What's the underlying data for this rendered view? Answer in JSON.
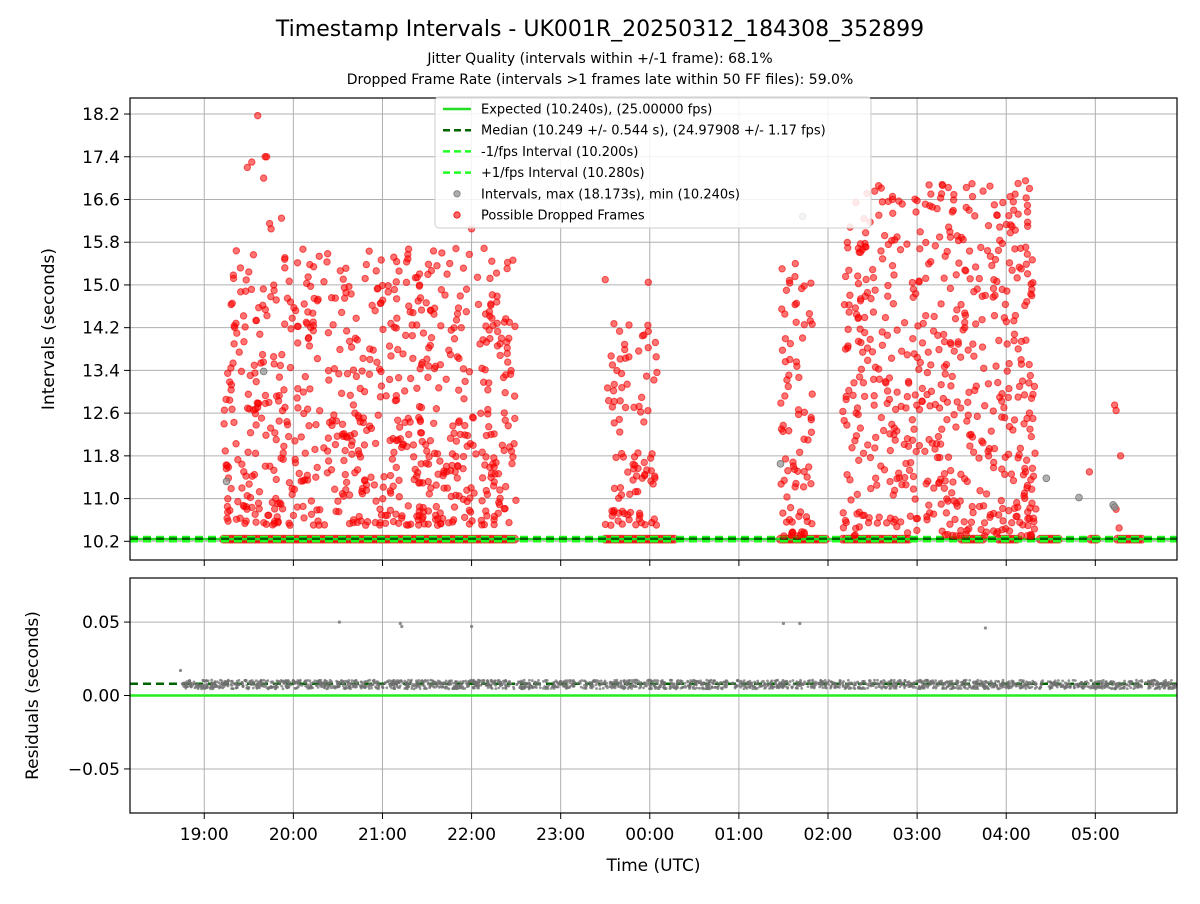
{
  "chart_data": [
    {
      "type": "scatter",
      "title": "Timestamp Intervals - UK001R_20250312_184308_352899",
      "subtitle_lines": [
        "Jitter Quality (intervals within +/-1 frame): 68.1%",
        "Dropped Frame Rate (intervals >1 frames late within 50 FF files): 59.0%"
      ],
      "xlabel": "",
      "ylabel": "Intervals (seconds)",
      "xlim": [
        "18:10",
        "05:55"
      ],
      "ylim": [
        9.85,
        18.5
      ],
      "grid": true,
      "yticks": [
        10.2,
        11.0,
        11.8,
        12.6,
        13.4,
        14.2,
        15.0,
        15.8,
        16.6,
        17.4,
        18.2
      ],
      "ytick_labels": [
        "10.2",
        "11.0",
        "11.8",
        "12.6",
        "13.4",
        "14.2",
        "15.0",
        "15.8",
        "16.6",
        "17.4",
        "18.2"
      ],
      "legend_position": "top-center",
      "legend": [
        {
          "label": "Expected (10.240s), (25.00000 fps)",
          "style": "solid-line",
          "color": "#22dd22"
        },
        {
          "label": "Median (10.249 +/- 0.544 s), (24.97908 +/- 1.17 fps)",
          "style": "dashed-line",
          "color": "#006400"
        },
        {
          "label": "-1/fps Interval (10.200s)",
          "style": "dashed-line",
          "color": "#22ff22"
        },
        {
          "label": "+1/fps Interval (10.280s)",
          "style": "dashed-line",
          "color": "#22ff22"
        },
        {
          "label": "Intervals, max (18.173s), min (10.240s)",
          "style": "gray-marker",
          "color": "#808080"
        },
        {
          "label": "Possible Dropped Frames",
          "style": "red-marker",
          "color": "#ff0000"
        }
      ],
      "reference_lines": {
        "expected": 10.24,
        "median": 10.249,
        "minus_one_fps": 10.2,
        "plus_one_fps": 10.28
      },
      "series": [
        {
          "name": "Possible Dropped Frames",
          "color": "#ff0000",
          "clusters": [
            {
              "start": "19:13",
              "end": "22:30",
              "y_min": 10.5,
              "y_max": 15.7,
              "count": 720
            },
            {
              "start": "23:30",
              "end": "00:05",
              "y_min": 10.5,
              "y_max": 14.3,
              "count": 95
            },
            {
              "start": "01:28",
              "end": "01:50",
              "y_min": 10.3,
              "y_max": 15.4,
              "count": 80
            },
            {
              "start": "02:10",
              "end": "04:20",
              "y_min": 10.3,
              "y_max": 16.9,
              "count": 560
            }
          ],
          "points": [
            {
              "x": "19:36",
              "y": 18.17
            },
            {
              "x": "19:29",
              "y": 17.2
            },
            {
              "x": "19:32",
              "y": 17.3
            },
            {
              "x": "19:41",
              "y": 17.4
            },
            {
              "x": "19:42",
              "y": 17.4
            },
            {
              "x": "19:40",
              "y": 17.0
            },
            {
              "x": "19:52",
              "y": 16.25
            },
            {
              "x": "19:44",
              "y": 16.15
            },
            {
              "x": "19:45",
              "y": 16.05
            },
            {
              "x": "22:00",
              "y": 16.05
            },
            {
              "x": "21:40",
              "y": 15.6
            },
            {
              "x": "21:20",
              "y": 14.25
            },
            {
              "x": "22:12",
              "y": 14.5
            },
            {
              "x": "23:30",
              "y": 15.1
            },
            {
              "x": "23:59",
              "y": 15.05
            },
            {
              "x": "23:46",
              "y": 14.25
            },
            {
              "x": "01:38",
              "y": 15.4
            },
            {
              "x": "01:32",
              "y": 14.9
            },
            {
              "x": "04:13",
              "y": 16.95
            },
            {
              "x": "04:08",
              "y": 16.9
            },
            {
              "x": "04:06",
              "y": 16.7
            },
            {
              "x": "03:52",
              "y": 16.5
            },
            {
              "x": "04:05",
              "y": 16.4
            },
            {
              "x": "03:35",
              "y": 16.4
            },
            {
              "x": "05:13",
              "y": 12.75
            },
            {
              "x": "05:14",
              "y": 12.65
            },
            {
              "x": "05:17",
              "y": 11.8
            },
            {
              "x": "04:56",
              "y": 11.5
            },
            {
              "x": "05:14",
              "y": 10.8
            },
            {
              "x": "05:16",
              "y": 10.45
            },
            {
              "x": "04:13",
              "y": 11.5
            },
            {
              "x": "04:14",
              "y": 11.2
            },
            {
              "x": "04:12",
              "y": 11.05
            },
            {
              "x": "04:14",
              "y": 12.5
            },
            {
              "x": "04:12",
              "y": 12.4
            },
            {
              "x": "04:10",
              "y": 13.6
            },
            {
              "x": "04:09",
              "y": 13.1
            },
            {
              "x": "04:08",
              "y": 12.9
            },
            {
              "x": "04:11",
              "y": 13.2
            },
            {
              "x": "04:18",
              "y": 12.5
            },
            {
              "x": "04:16",
              "y": 12.3
            },
            {
              "x": "04:19",
              "y": 13.1
            }
          ]
        },
        {
          "name": "Intervals",
          "color": "#808080",
          "points": [
            {
              "x": "19:15",
              "y": 11.32
            },
            {
              "x": "01:28",
              "y": 11.65
            },
            {
              "x": "01:43",
              "y": 16.28
            },
            {
              "x": "04:27",
              "y": 11.38
            },
            {
              "x": "04:49",
              "y": 11.02
            },
            {
              "x": "05:12",
              "y": 10.88
            },
            {
              "x": "05:13",
              "y": 10.84
            },
            {
              "x": "19:40",
              "y": 13.38
            }
          ]
        }
      ],
      "dropped_bands": [
        [
          "19:13",
          "22:30"
        ],
        [
          "23:30",
          "00:17"
        ],
        [
          "01:28",
          "01:59"
        ],
        [
          "02:10",
          "02:56"
        ],
        [
          "03:30",
          "03:45"
        ],
        [
          "03:55",
          "04:08"
        ],
        [
          "04:23",
          "04:36"
        ],
        [
          "04:57",
          "05:03"
        ],
        [
          "05:15",
          "05:32"
        ]
      ]
    },
    {
      "type": "scatter",
      "title": "",
      "xlabel": "Time (UTC)",
      "ylabel": "Residuals (seconds)",
      "xlim": [
        "18:10",
        "05:55"
      ],
      "ylim": [
        -0.08,
        0.08
      ],
      "grid": true,
      "yticks": [
        0.05,
        0.0,
        -0.05
      ],
      "ytick_labels": [
        "0.05",
        "0.00",
        "−0.05"
      ],
      "xticks": [
        "19:00",
        "20:00",
        "21:00",
        "22:00",
        "23:00",
        "00:00",
        "01:00",
        "02:00",
        "03:00",
        "04:00",
        "05:00"
      ],
      "reference_lines": {
        "expected": 0.0,
        "median": 0.008
      },
      "series": [
        {
          "name": "Residuals",
          "color": "#707070",
          "segments": [
            {
              "start": "18:45",
              "end": "04:25",
              "y_center": 0.0075,
              "y_spread": 0.003
            },
            {
              "start": "04:28",
              "end": "05:55",
              "y_center": 0.0075,
              "y_spread": 0.003
            }
          ],
          "points": [
            {
              "x": "18:44",
              "y": 0.017
            },
            {
              "x": "20:31",
              "y": 0.05
            },
            {
              "x": "21:12",
              "y": 0.049
            },
            {
              "x": "21:13",
              "y": 0.047
            },
            {
              "x": "22:00",
              "y": 0.047
            },
            {
              "x": "01:30",
              "y": 0.049
            },
            {
              "x": "01:41",
              "y": 0.049
            },
            {
              "x": "03:46",
              "y": 0.046
            }
          ]
        }
      ]
    }
  ]
}
